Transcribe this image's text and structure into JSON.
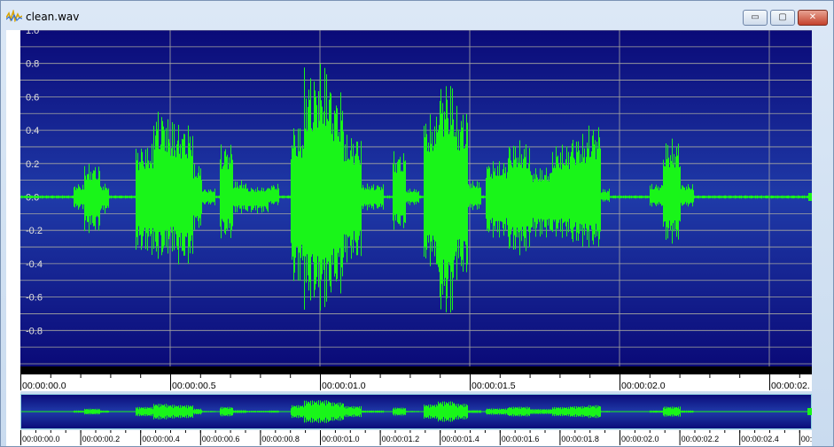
{
  "window": {
    "title": "clean.wav"
  },
  "buttons": {
    "minimize": "▭",
    "maximize": "▢",
    "close": "✕"
  },
  "icons": {
    "app": "waveform-icon"
  },
  "colors": {
    "background_top": "#0a0a78",
    "background_bottom": "#1f3aa8",
    "waveform": "#19f519",
    "grid": "#a8a8a0",
    "zero_line": "#e6e6e6"
  },
  "waveform": {
    "amplitude_axis_labels": [
      "1.0",
      "0.8",
      "0.6",
      "0.4",
      "0.2",
      "0.0",
      "-0.2",
      "-0.4",
      "-0.6",
      "-0.8"
    ],
    "amplitude_range": [
      -1.0,
      1.0
    ],
    "duration_seconds": 2.64
  },
  "time_ruler": {
    "labels": [
      "00:00:00.0",
      "00:00:00.5",
      "00:00:01.0",
      "00:00:01.5",
      "00:00:02.0",
      "00:00:02."
    ]
  },
  "overview_ruler": {
    "labels": [
      "00:00:00.0",
      "00:00:00.2",
      "00:00:00.4",
      "00:00:00.6",
      "00:00:00.8",
      "00:00:01.0",
      "00:00:01.2",
      "00:00:01.4",
      "00:00:01.6",
      "00:00:01.8",
      "00:00:02.0",
      "00:00:02.2",
      "00:00:02.4",
      "00:"
    ]
  }
}
